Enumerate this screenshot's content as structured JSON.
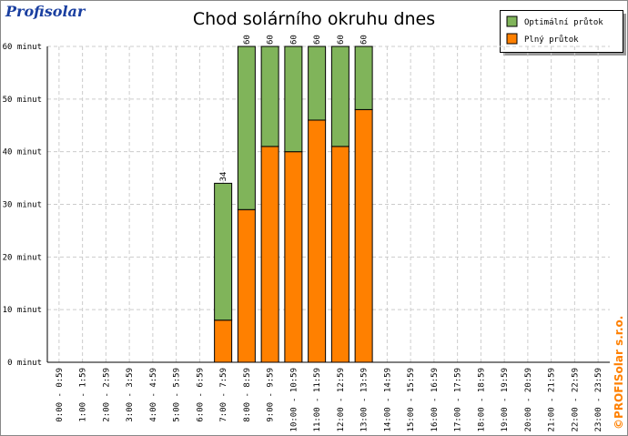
{
  "chart_data": {
    "type": "stacked_bar",
    "title": "Chod solárního okruhu dnes",
    "logo": "Profisolar",
    "copyright": "©PROFISolar s.r.o.",
    "categories": [
      "0:00 - 0:59",
      "1:00 - 1:59",
      "2:00 - 2:59",
      "3:00 - 3:59",
      "4:00 - 4:59",
      "5:00 - 5:59",
      "6:00 - 6:59",
      "7:00 - 7:59",
      "8:00 - 8:59",
      "9:00 - 9:59",
      "10:00 - 10:59",
      "11:00 - 11:59",
      "12:00 - 12:59",
      "13:00 - 13:59",
      "14:00 - 14:59",
      "15:00 - 15:59",
      "16:00 - 16:59",
      "17:00 - 17:59",
      "18:00 - 18:59",
      "19:00 - 19:59",
      "20:00 - 20:59",
      "21:00 - 21:59",
      "22:00 - 22:59",
      "23:00 - 23:59"
    ],
    "series": [
      {
        "name": "Plný průtok",
        "color": "#ff8000",
        "values": [
          0,
          0,
          0,
          0,
          0,
          0,
          0,
          8,
          29,
          41,
          40,
          46,
          41,
          48,
          0,
          0,
          0,
          0,
          0,
          0,
          0,
          0,
          0,
          0
        ]
      },
      {
        "name": "Optimální průtok",
        "color": "#80b45a",
        "values": [
          0,
          0,
          0,
          0,
          0,
          0,
          0,
          26,
          31,
          19,
          20,
          14,
          19,
          12,
          0,
          0,
          0,
          0,
          0,
          0,
          0,
          0,
          0,
          0
        ]
      }
    ],
    "totals": [
      null,
      null,
      null,
      null,
      null,
      null,
      null,
      34,
      60,
      60,
      60,
      60,
      60,
      60,
      null,
      null,
      null,
      null,
      null,
      null,
      null,
      null,
      null,
      null
    ],
    "ylim": [
      0,
      60
    ],
    "yticks": [
      {
        "value": 0,
        "label": "0 minut"
      },
      {
        "value": 10,
        "label": "10 minut"
      },
      {
        "value": 20,
        "label": "20 minut"
      },
      {
        "value": 30,
        "label": "30 minut"
      },
      {
        "value": 40,
        "label": "40 minut"
      },
      {
        "value": 50,
        "label": "50 minut"
      },
      {
        "value": 60,
        "label": "60 minut"
      }
    ],
    "grid": true,
    "legend": "top-right"
  }
}
